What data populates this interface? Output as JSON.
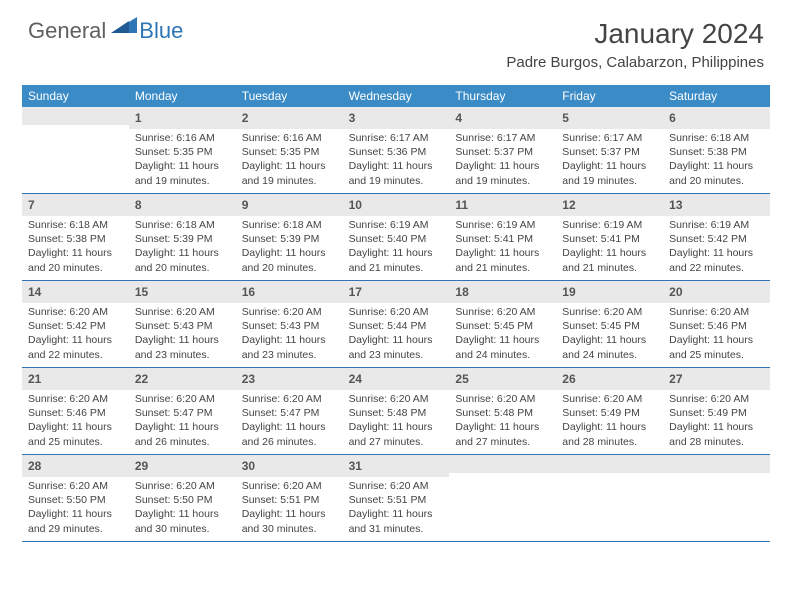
{
  "logo": {
    "general": "General",
    "blue": "Blue"
  },
  "title": "January 2024",
  "location": "Padre Burgos, Calabarzon, Philippines",
  "colors": {
    "header_bg": "#3b8bc7",
    "header_text": "#ffffff",
    "daynum_bg": "#e9e9e9",
    "border": "#2e75b6",
    "body_text": "#444444",
    "logo_gray": "#5f5f5f",
    "logo_blue": "#2e75b6"
  },
  "weekdays": [
    "Sunday",
    "Monday",
    "Tuesday",
    "Wednesday",
    "Thursday",
    "Friday",
    "Saturday"
  ],
  "weeks": [
    [
      {
        "n": "",
        "sr": "",
        "ss": "",
        "dl": ""
      },
      {
        "n": "1",
        "sr": "Sunrise: 6:16 AM",
        "ss": "Sunset: 5:35 PM",
        "dl": "Daylight: 11 hours and 19 minutes."
      },
      {
        "n": "2",
        "sr": "Sunrise: 6:16 AM",
        "ss": "Sunset: 5:35 PM",
        "dl": "Daylight: 11 hours and 19 minutes."
      },
      {
        "n": "3",
        "sr": "Sunrise: 6:17 AM",
        "ss": "Sunset: 5:36 PM",
        "dl": "Daylight: 11 hours and 19 minutes."
      },
      {
        "n": "4",
        "sr": "Sunrise: 6:17 AM",
        "ss": "Sunset: 5:37 PM",
        "dl": "Daylight: 11 hours and 19 minutes."
      },
      {
        "n": "5",
        "sr": "Sunrise: 6:17 AM",
        "ss": "Sunset: 5:37 PM",
        "dl": "Daylight: 11 hours and 19 minutes."
      },
      {
        "n": "6",
        "sr": "Sunrise: 6:18 AM",
        "ss": "Sunset: 5:38 PM",
        "dl": "Daylight: 11 hours and 20 minutes."
      }
    ],
    [
      {
        "n": "7",
        "sr": "Sunrise: 6:18 AM",
        "ss": "Sunset: 5:38 PM",
        "dl": "Daylight: 11 hours and 20 minutes."
      },
      {
        "n": "8",
        "sr": "Sunrise: 6:18 AM",
        "ss": "Sunset: 5:39 PM",
        "dl": "Daylight: 11 hours and 20 minutes."
      },
      {
        "n": "9",
        "sr": "Sunrise: 6:18 AM",
        "ss": "Sunset: 5:39 PM",
        "dl": "Daylight: 11 hours and 20 minutes."
      },
      {
        "n": "10",
        "sr": "Sunrise: 6:19 AM",
        "ss": "Sunset: 5:40 PM",
        "dl": "Daylight: 11 hours and 21 minutes."
      },
      {
        "n": "11",
        "sr": "Sunrise: 6:19 AM",
        "ss": "Sunset: 5:41 PM",
        "dl": "Daylight: 11 hours and 21 minutes."
      },
      {
        "n": "12",
        "sr": "Sunrise: 6:19 AM",
        "ss": "Sunset: 5:41 PM",
        "dl": "Daylight: 11 hours and 21 minutes."
      },
      {
        "n": "13",
        "sr": "Sunrise: 6:19 AM",
        "ss": "Sunset: 5:42 PM",
        "dl": "Daylight: 11 hours and 22 minutes."
      }
    ],
    [
      {
        "n": "14",
        "sr": "Sunrise: 6:20 AM",
        "ss": "Sunset: 5:42 PM",
        "dl": "Daylight: 11 hours and 22 minutes."
      },
      {
        "n": "15",
        "sr": "Sunrise: 6:20 AM",
        "ss": "Sunset: 5:43 PM",
        "dl": "Daylight: 11 hours and 23 minutes."
      },
      {
        "n": "16",
        "sr": "Sunrise: 6:20 AM",
        "ss": "Sunset: 5:43 PM",
        "dl": "Daylight: 11 hours and 23 minutes."
      },
      {
        "n": "17",
        "sr": "Sunrise: 6:20 AM",
        "ss": "Sunset: 5:44 PM",
        "dl": "Daylight: 11 hours and 23 minutes."
      },
      {
        "n": "18",
        "sr": "Sunrise: 6:20 AM",
        "ss": "Sunset: 5:45 PM",
        "dl": "Daylight: 11 hours and 24 minutes."
      },
      {
        "n": "19",
        "sr": "Sunrise: 6:20 AM",
        "ss": "Sunset: 5:45 PM",
        "dl": "Daylight: 11 hours and 24 minutes."
      },
      {
        "n": "20",
        "sr": "Sunrise: 6:20 AM",
        "ss": "Sunset: 5:46 PM",
        "dl": "Daylight: 11 hours and 25 minutes."
      }
    ],
    [
      {
        "n": "21",
        "sr": "Sunrise: 6:20 AM",
        "ss": "Sunset: 5:46 PM",
        "dl": "Daylight: 11 hours and 25 minutes."
      },
      {
        "n": "22",
        "sr": "Sunrise: 6:20 AM",
        "ss": "Sunset: 5:47 PM",
        "dl": "Daylight: 11 hours and 26 minutes."
      },
      {
        "n": "23",
        "sr": "Sunrise: 6:20 AM",
        "ss": "Sunset: 5:47 PM",
        "dl": "Daylight: 11 hours and 26 minutes."
      },
      {
        "n": "24",
        "sr": "Sunrise: 6:20 AM",
        "ss": "Sunset: 5:48 PM",
        "dl": "Daylight: 11 hours and 27 minutes."
      },
      {
        "n": "25",
        "sr": "Sunrise: 6:20 AM",
        "ss": "Sunset: 5:48 PM",
        "dl": "Daylight: 11 hours and 27 minutes."
      },
      {
        "n": "26",
        "sr": "Sunrise: 6:20 AM",
        "ss": "Sunset: 5:49 PM",
        "dl": "Daylight: 11 hours and 28 minutes."
      },
      {
        "n": "27",
        "sr": "Sunrise: 6:20 AM",
        "ss": "Sunset: 5:49 PM",
        "dl": "Daylight: 11 hours and 28 minutes."
      }
    ],
    [
      {
        "n": "28",
        "sr": "Sunrise: 6:20 AM",
        "ss": "Sunset: 5:50 PM",
        "dl": "Daylight: 11 hours and 29 minutes."
      },
      {
        "n": "29",
        "sr": "Sunrise: 6:20 AM",
        "ss": "Sunset: 5:50 PM",
        "dl": "Daylight: 11 hours and 30 minutes."
      },
      {
        "n": "30",
        "sr": "Sunrise: 6:20 AM",
        "ss": "Sunset: 5:51 PM",
        "dl": "Daylight: 11 hours and 30 minutes."
      },
      {
        "n": "31",
        "sr": "Sunrise: 6:20 AM",
        "ss": "Sunset: 5:51 PM",
        "dl": "Daylight: 11 hours and 31 minutes."
      },
      {
        "n": "",
        "sr": "",
        "ss": "",
        "dl": ""
      },
      {
        "n": "",
        "sr": "",
        "ss": "",
        "dl": ""
      },
      {
        "n": "",
        "sr": "",
        "ss": "",
        "dl": ""
      }
    ]
  ]
}
